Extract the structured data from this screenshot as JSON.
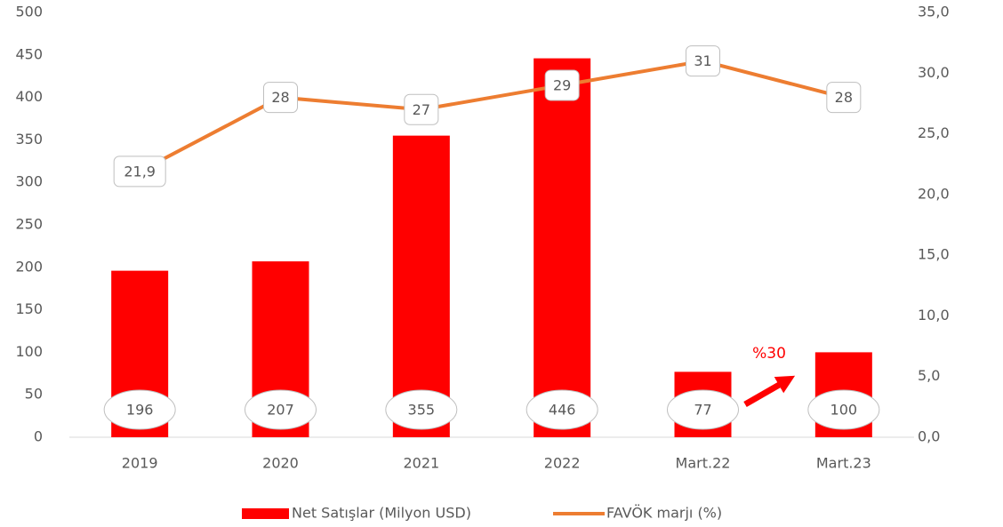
{
  "chart_data": {
    "type": "bar",
    "categories": [
      "2019",
      "2020",
      "2021",
      "2022",
      "Mart.22",
      "Mart.23"
    ],
    "series": [
      {
        "name": "Net Satışlar (Milyon USD)",
        "type": "bar",
        "color": "#ff0000",
        "values": [
          196,
          207,
          355,
          446,
          77,
          100
        ]
      },
      {
        "name": "FAVÖK marjı (%)",
        "type": "line",
        "axis": "y2",
        "color": "#ed7d31",
        "values": [
          21.9,
          28,
          27,
          29,
          31,
          28
        ],
        "value_labels": [
          "21,9",
          "28",
          "27",
          "29",
          "31",
          "28"
        ]
      }
    ],
    "ylim": [
      0,
      500
    ],
    "yticks": [
      0,
      50,
      100,
      150,
      200,
      250,
      300,
      350,
      400,
      450,
      500
    ],
    "y2lim": [
      0,
      35
    ],
    "y2ticks": [
      {
        "value": 0,
        "label": "0,0"
      },
      {
        "value": 5,
        "label": "5,0"
      },
      {
        "value": 10,
        "label": "10,0"
      },
      {
        "value": 15,
        "label": "15,0"
      },
      {
        "value": 20,
        "label": "20,0"
      },
      {
        "value": 25,
        "label": "25,0"
      },
      {
        "value": 30,
        "label": "30,0"
      },
      {
        "value": 35,
        "label": "35,0"
      }
    ],
    "annotation": "%30",
    "legend": "bottom"
  }
}
